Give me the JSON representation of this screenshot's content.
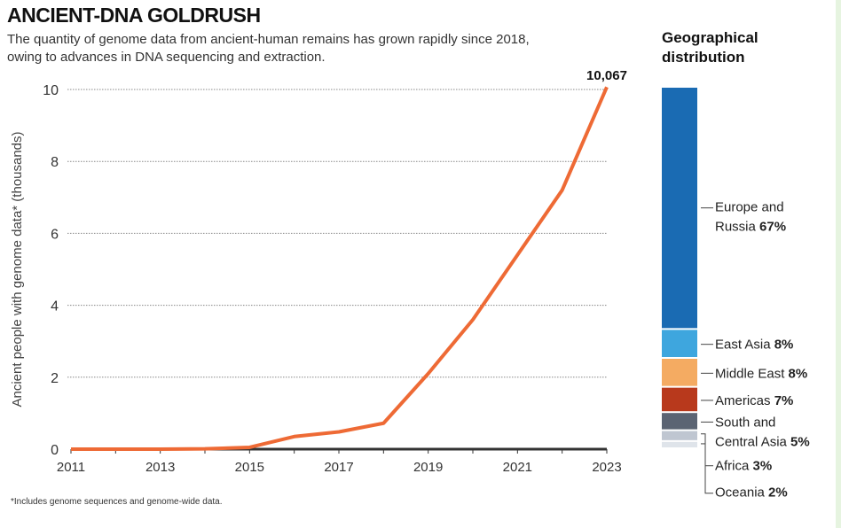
{
  "header": {
    "title": "ANCIENT-DNA GOLDRUSH",
    "subtitle": "The quantity of genome data from ancient-human remains has grown rapidly since 2018, owing to advances in DNA sequencing and extraction."
  },
  "footnote": "*Includes genome sequences and genome-wide data.",
  "chart_data": [
    {
      "type": "line",
      "ylabel": "Ancient people with genome data* (thousands)",
      "xlabel": "",
      "x": [
        2011,
        2012,
        2013,
        2014,
        2015,
        2016,
        2017,
        2018,
        2019,
        2020,
        2021,
        2022,
        2023
      ],
      "series": [
        {
          "values": [
            0,
            0,
            0,
            0.01,
            0.05,
            0.35,
            0.48,
            0.72,
            2.1,
            3.6,
            5.4,
            7.2,
            10.067
          ],
          "color": "#ee6a35"
        }
      ],
      "xticks": [
        "2011",
        "2013",
        "2015",
        "2017",
        "2019",
        "2021",
        "2023"
      ],
      "yticks": [
        "0",
        "2",
        "4",
        "6",
        "8",
        "10"
      ],
      "ylim": [
        0,
        10
      ],
      "xlim": [
        2011,
        2023
      ],
      "grid": true,
      "annotation": "10,067"
    },
    {
      "type": "bar",
      "stacked": true,
      "title": "Geographical distribution",
      "segments": [
        {
          "label": "Europe and Russia",
          "value": "67%",
          "pct": 67,
          "color": "#1a6bb3"
        },
        {
          "label": "East Asia",
          "value": "8%",
          "pct": 8,
          "color": "#3ea6de"
        },
        {
          "label": "Middle East",
          "value": "8%",
          "pct": 8,
          "color": "#f4ab62"
        },
        {
          "label": "Americas",
          "value": "7%",
          "pct": 7,
          "color": "#b8391c"
        },
        {
          "label": "South and Central Asia",
          "value": "5%",
          "pct": 5,
          "color": "#5b6473"
        },
        {
          "label": "Africa",
          "value": "3%",
          "pct": 3,
          "color": "#bfc6d1"
        },
        {
          "label": "Oceania",
          "value": "2%",
          "pct": 2,
          "color": "#dfe4ea"
        }
      ]
    }
  ]
}
